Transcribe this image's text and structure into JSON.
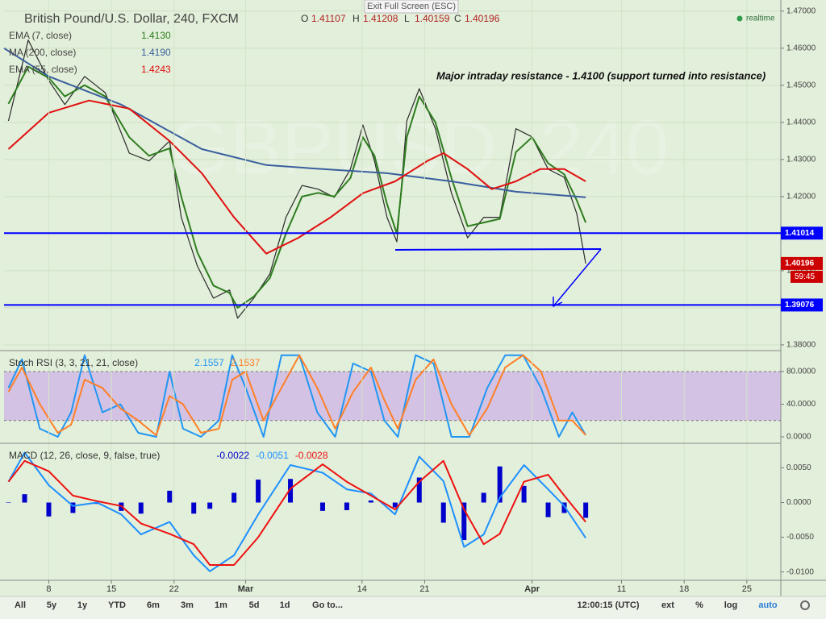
{
  "header": {
    "exit": "Exit Full Screen (ESC)",
    "symbol": "British Pound/U.S. Dollar, 240, FXCM",
    "ohlc": [
      {
        "key": "O",
        "value": 1.41107
      },
      {
        "key": "H",
        "value": 1.41208
      },
      {
        "key": "L",
        "value": 1.40159
      },
      {
        "key": "C",
        "value": 1.40196
      }
    ],
    "status": "realtime",
    "watermark": "GBPUSD, 240"
  },
  "toolbar": {
    "left": [
      "All",
      "5y",
      "1y",
      "YTD",
      "6m",
      "3m",
      "1m",
      "5d",
      "1d",
      "Go to..."
    ],
    "time": "12:00:15 (UTC)",
    "right": [
      "ext",
      "%",
      "log",
      "auto"
    ]
  },
  "chart_data": [
    {
      "type": "line",
      "xlim": [
        3,
        89.8
      ],
      "ylim": [
        1.3789,
        1.473
      ],
      "yticks": [
        {
          "value": 1.38,
          "label": "1.38000"
        },
        {
          "value": 1.39,
          "label": "1.39000"
        },
        {
          "value": 1.4,
          "label": "1.40000"
        },
        {
          "value": 1.41,
          "label": "1.41000"
        },
        {
          "value": 1.42,
          "label": "1.42000"
        },
        {
          "value": 1.43,
          "label": "1.43000"
        },
        {
          "value": 1.44,
          "label": "1.44000"
        },
        {
          "value": 1.45,
          "label": "1.45000"
        },
        {
          "value": 1.46,
          "label": "1.46000"
        },
        {
          "value": 1.47,
          "label": "1.47000"
        }
      ],
      "grid": true,
      "annotation": "Major intraday resistance - 1.4100 (support turned into resistance)",
      "hlines": [
        {
          "value": 1.41014,
          "color": "#0000ff"
        },
        {
          "value": 1.39076,
          "color": "#0000ff"
        }
      ],
      "last_color": "#cc0000",
      "countdown": "59:45",
      "series": [
        {
          "color": "#2b2b2b",
          "x": [
            3.5,
            5.7,
            8,
            9.8,
            12,
            14.3,
            17,
            19.2,
            21.5,
            22.8,
            24.6,
            26.4,
            28.2,
            29.1,
            30.9,
            32.7,
            34.5,
            36.3,
            38.1,
            39.9,
            41.7,
            43.1,
            44.4,
            45.8,
            46.9,
            48,
            49.4,
            51.2,
            53,
            54.8,
            56.6,
            58.4,
            60.2,
            62,
            63.8,
            65.6,
            67,
            68
          ],
          "values": [
            1.4404,
            1.4622,
            1.4513,
            1.4448,
            1.4524,
            1.448,
            1.4317,
            1.4296,
            1.435,
            1.4144,
            1.4013,
            1.3926,
            1.3948,
            1.3872,
            1.3926,
            1.3991,
            1.4144,
            1.423,
            1.422,
            1.4198,
            1.4274,
            1.4393,
            1.4296,
            1.4144,
            1.4078,
            1.4404,
            1.4491,
            1.4383,
            1.4209,
            1.4089,
            1.4144,
            1.4144,
            1.4383,
            1.4361,
            1.4274,
            1.4252,
            1.4154,
            1.40196
          ]
        },
        {
          "name": "EMA (7, close)",
          "legend_value": "1.4130",
          "color": "#2e7d1f",
          "x": [
            3.5,
            5.7,
            8,
            9.8,
            12,
            14.3,
            17,
            19.2,
            21.5,
            22.8,
            24.6,
            26.4,
            28.2,
            29.1,
            30.9,
            32.7,
            34.5,
            36.3,
            38.1,
            39.9,
            41.7,
            43.1,
            44.4,
            45.8,
            46.9,
            48,
            49.4,
            51.2,
            53,
            54.8,
            56.6,
            58.4,
            60.2,
            62,
            63.8,
            65.6,
            67,
            68
          ],
          "values": [
            1.445,
            1.455,
            1.452,
            1.447,
            1.45,
            1.447,
            1.436,
            1.431,
            1.433,
            1.42,
            1.405,
            1.396,
            1.394,
            1.39,
            1.393,
            1.398,
            1.41,
            1.42,
            1.421,
            1.42,
            1.425,
            1.436,
            1.431,
            1.418,
            1.41,
            1.436,
            1.447,
            1.44,
            1.425,
            1.412,
            1.413,
            1.414,
            1.432,
            1.436,
            1.429,
            1.426,
            1.419,
            1.413
          ]
        },
        {
          "name": "MA (200, close)",
          "legend_value": "1.4190",
          "color": "#3a5f9e",
          "x": [
            3,
            8,
            16.1,
            25.1,
            32.3,
            38.6,
            45.8,
            53,
            60.2,
            68
          ],
          "values": [
            1.46,
            1.4524,
            1.4448,
            1.4328,
            1.4285,
            1.4274,
            1.4263,
            1.4241,
            1.4213,
            1.4198
          ]
        },
        {
          "name": "EMA (55, close)",
          "legend_value": "1.4243",
          "color": "#e01010",
          "x": [
            3.5,
            8,
            12.5,
            17,
            21.5,
            25.1,
            28.7,
            32.3,
            35.9,
            39.5,
            43.1,
            46.7,
            50.3,
            52.1,
            54.8,
            57.5,
            60.2,
            62.9,
            65.6,
            68
          ],
          "values": [
            1.4328,
            1.4426,
            1.4459,
            1.4437,
            1.435,
            1.4263,
            1.4144,
            1.4046,
            1.4089,
            1.4144,
            1.4209,
            1.4241,
            1.4296,
            1.4317,
            1.4274,
            1.422,
            1.4241,
            1.4274,
            1.4274,
            1.4241
          ]
        }
      ]
    },
    {
      "type": "line",
      "title": "Stoch RSI (3, 3, 21, 21, close)",
      "xlim": [
        3,
        89.8
      ],
      "ylim": [
        -5.9,
        103.7
      ],
      "yticks": [
        {
          "value": 0,
          "label": "0.0000"
        },
        {
          "value": 40,
          "label": "40.0000"
        },
        {
          "value": 80,
          "label": "80.0000"
        }
      ],
      "band": [
        20,
        80
      ],
      "band_color": "#d3c2e3",
      "series": [
        {
          "color": "#2196f3",
          "x": [
            3.5,
            5,
            7,
            9,
            10.5,
            12,
            14,
            16,
            18,
            20,
            21.5,
            23,
            25,
            27,
            28.5,
            30,
            32,
            34,
            36,
            38,
            40,
            42,
            44,
            45.5,
            47,
            49,
            51,
            53,
            55,
            57,
            59,
            61,
            63,
            65,
            66.5,
            68
          ],
          "values": [
            60,
            95,
            10,
            0,
            30,
            100,
            30,
            40,
            5,
            0,
            80,
            10,
            0,
            20,
            100,
            60,
            0,
            100,
            100,
            30,
            0,
            90,
            80,
            20,
            0,
            100,
            90,
            0,
            0,
            60,
            100,
            100,
            60,
            0,
            30,
            2.1557
          ]
        },
        {
          "color": "#ff7f27",
          "x": [
            3.5,
            5,
            7,
            9,
            10.5,
            12,
            14,
            16,
            18,
            20,
            21.5,
            23,
            25,
            27,
            28.5,
            30,
            32,
            34,
            36,
            38,
            40,
            42,
            44,
            45.5,
            47,
            49,
            51,
            53,
            55,
            57,
            59,
            61,
            63,
            65,
            66.5,
            68
          ],
          "values": [
            55,
            85,
            40,
            5,
            15,
            70,
            60,
            35,
            20,
            2,
            50,
            40,
            5,
            10,
            70,
            80,
            20,
            60,
            100,
            60,
            10,
            55,
            85,
            45,
            10,
            70,
            95,
            40,
            2,
            35,
            85,
            100,
            80,
            20,
            20,
            2.1537
          ]
        }
      ]
    },
    {
      "type": "line",
      "title": "MACD (12, 26, close, 9, false, true)",
      "xlim": [
        3,
        89.8
      ],
      "ylim": [
        -0.0112,
        0.0083
      ],
      "yticks": [
        {
          "value": -0.01,
          "label": "-0.0100"
        },
        {
          "value": -0.005,
          "label": "-0.0050"
        },
        {
          "value": 0,
          "label": "0.0000"
        },
        {
          "value": 0.005,
          "label": "0.0050"
        }
      ],
      "xticks": [
        8,
        15,
        22,
        {
          "value": 30,
          "label": "Mar"
        },
        {
          "value": 43,
          "label": "14"
        },
        {
          "value": 50,
          "label": "21"
        },
        {
          "value": 62,
          "label": "Apr"
        },
        {
          "value": 72,
          "label": "11"
        },
        {
          "value": 79,
          "label": "18"
        },
        {
          "value": 86,
          "label": "25"
        }
      ],
      "series": [
        {
          "type": "bar",
          "color": "#0000cc",
          "x": [
            3.5,
            5.3,
            8,
            10.7,
            13.4,
            16.1,
            18.3,
            21.5,
            24.2,
            26,
            28.7,
            31.4,
            35,
            38.6,
            41.3,
            44,
            46.7,
            49.4,
            52.1,
            54.4,
            56.6,
            58.4,
            61.1,
            63.8,
            65.6,
            68
          ],
          "values": [
            0,
            0.0012,
            -0.002,
            -0.0015,
            -0.0002,
            -0.0012,
            -0.0016,
            0.0017,
            -0.0016,
            -0.0009,
            0.0014,
            0.0033,
            0.0034,
            -0.0012,
            -0.0011,
            0.0003,
            -0.0007,
            0.0036,
            -0.0029,
            -0.0054,
            0.0014,
            0.0052,
            0.0024,
            -0.0021,
            -0.0015,
            -0.0022
          ]
        },
        {
          "color": "#1e90ff",
          "x": [
            3.5,
            5.3,
            8,
            10.7,
            13.4,
            16.1,
            18.3,
            21.5,
            24.2,
            26,
            28.7,
            31.4,
            35,
            38.6,
            41.3,
            44,
            46.7,
            49.4,
            52.1,
            54.4,
            56.6,
            58.4,
            61.1,
            63.8,
            65.6,
            68
          ],
          "values": [
            0.003,
            0.0072,
            0.0025,
            -0.0005,
            0,
            -0.0017,
            -0.0046,
            -0.0028,
            -0.0076,
            -0.0099,
            -0.0076,
            -0.0017,
            0.0054,
            0.0043,
            0.0019,
            0.0013,
            -0.0017,
            0.0066,
            0.0031,
            -0.0064,
            -0.0046,
            0.0007,
            0.0054,
            0.0019,
            -0.0005,
            -0.0051
          ]
        },
        {
          "color": "#ee1111",
          "x": [
            3.5,
            5.3,
            8,
            10.7,
            13.4,
            16.1,
            18.3,
            21.5,
            24.2,
            26,
            28.7,
            31.4,
            35,
            38.6,
            41.3,
            44,
            46.7,
            49.4,
            52.1,
            54.4,
            56.6,
            58.4,
            61.1,
            63.8,
            65.6,
            68
          ],
          "values": [
            0.003,
            0.006,
            0.0045,
            0.001,
            0.0002,
            -0.0005,
            -0.003,
            -0.0045,
            -0.006,
            -0.009,
            -0.009,
            -0.005,
            0.002,
            0.0055,
            0.003,
            0.001,
            -0.001,
            0.003,
            0.006,
            -0.001,
            -0.006,
            -0.0045,
            0.003,
            0.004,
            0.001,
            -0.0028
          ]
        }
      ]
    }
  ]
}
